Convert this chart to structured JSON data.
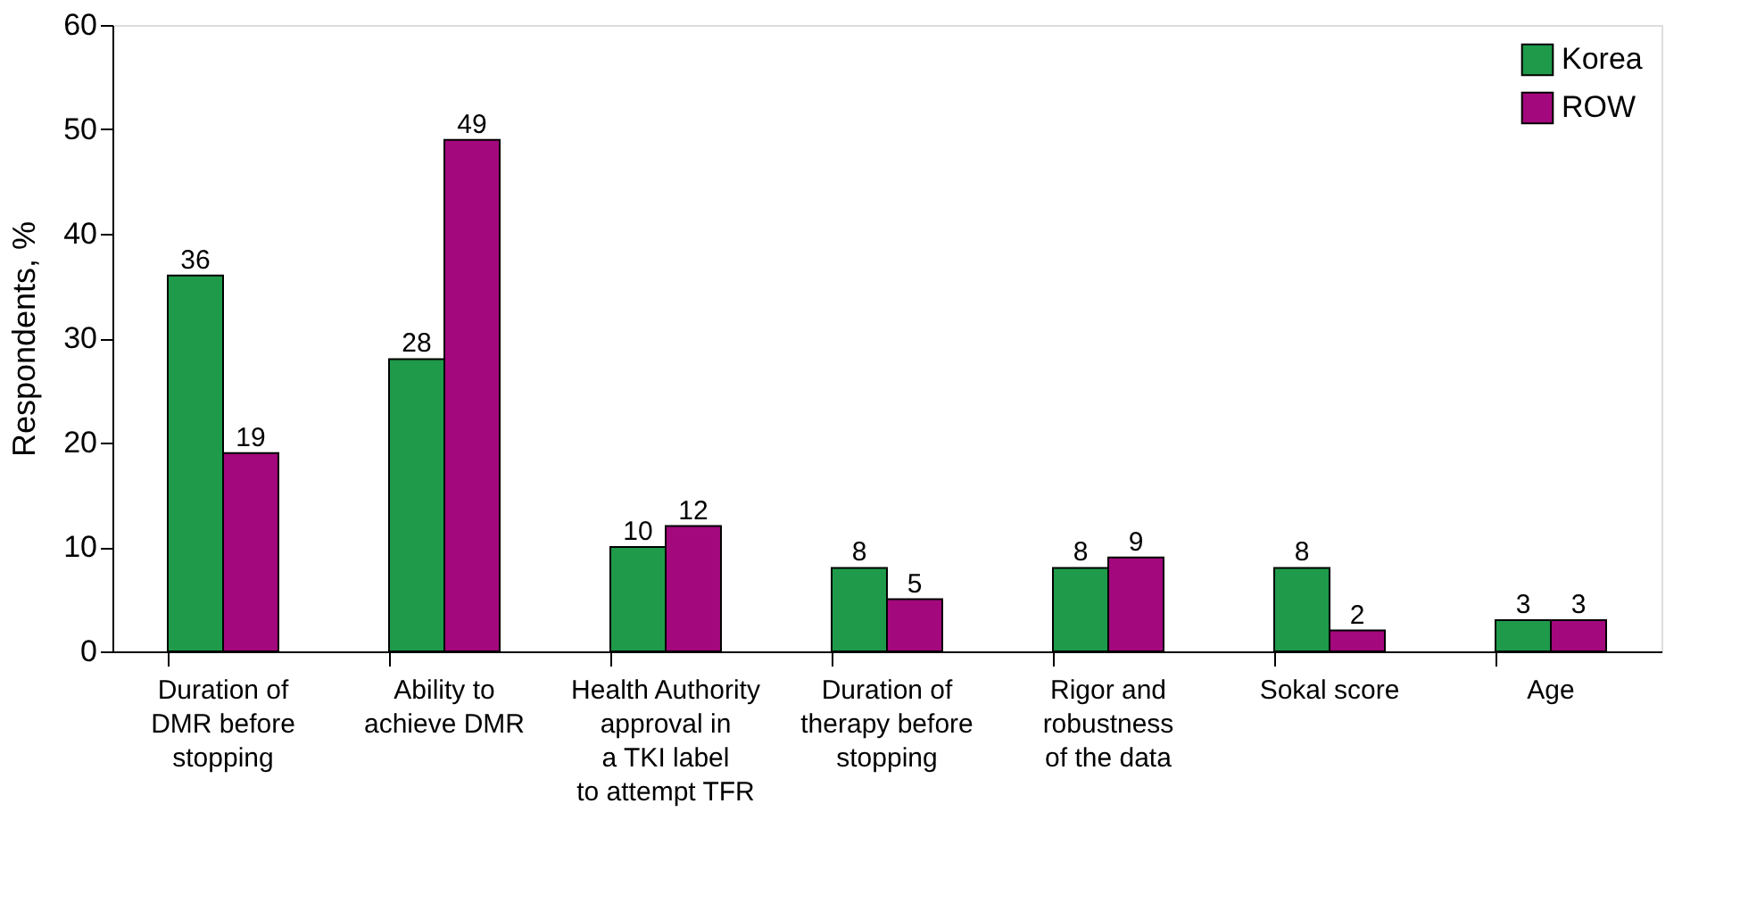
{
  "chart_data": {
    "type": "bar",
    "ylabel": "Respondents, %",
    "categories": [
      "Duration of\nDMR before\nstopping",
      "Ability to\nachieve DMR",
      "Health Authority\napproval in\na TKI label\nto attempt TFR",
      "Duration of\ntherapy before\nstopping",
      "Rigor and\nrobustness\nof the data",
      "Sokal score",
      "Age"
    ],
    "series": [
      {
        "name": "Korea",
        "color": "#1e9a4a",
        "values": [
          36,
          28,
          10,
          8,
          8,
          8,
          3
        ]
      },
      {
        "name": "ROW",
        "color": "#a3087c",
        "values": [
          19,
          49,
          12,
          5,
          9,
          2,
          3
        ]
      }
    ],
    "ylim": [
      0,
      60
    ],
    "yticks": [
      0,
      10,
      20,
      30,
      40,
      50,
      60
    ],
    "grid": false,
    "legend": "top right",
    "data_labels": true
  }
}
